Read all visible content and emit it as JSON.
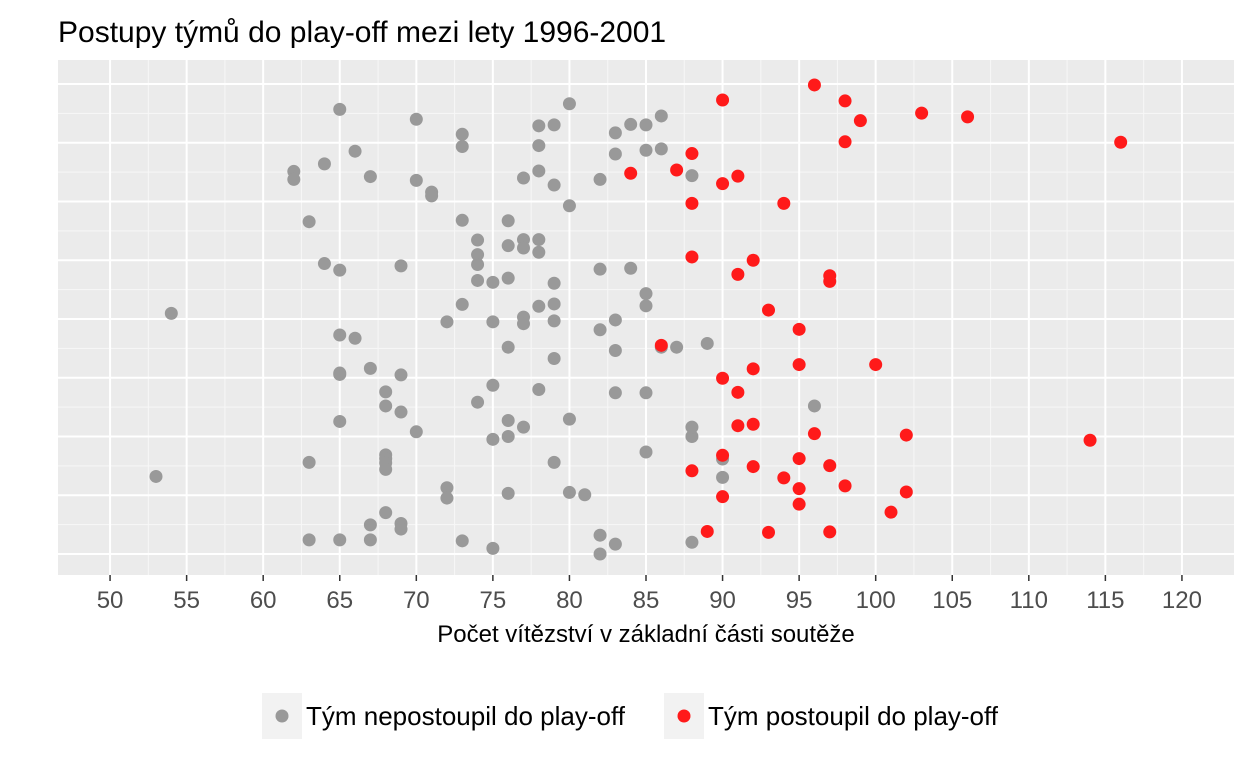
{
  "chart_data": {
    "type": "scatter",
    "title": "Postupy týmů do play-off mezi lety 1996-2001",
    "xlabel": "Počet vítězství v základní části soutěže",
    "ylabel": "",
    "xlim": [
      46.6,
      123.4
    ],
    "ylim": [
      0,
      1
    ],
    "x_ticks": [
      50,
      55,
      60,
      65,
      70,
      75,
      80,
      85,
      90,
      95,
      100,
      105,
      110,
      115,
      120
    ],
    "y_axis_labels_shown": false,
    "grid": true,
    "legend_position": "bottom",
    "series": [
      {
        "name": "Tým nepostoupil do play-off",
        "color": "#999999",
        "x": [
          65,
          70,
          80,
          73,
          73,
          78,
          79,
          78,
          83,
          83,
          84,
          85,
          85,
          86,
          86,
          66,
          64,
          62,
          62,
          67,
          70,
          71,
          71,
          77,
          78,
          79,
          82,
          88,
          80,
          63,
          73,
          76,
          74,
          77,
          78,
          74,
          76,
          77,
          78,
          64,
          65,
          69,
          74,
          75,
          74,
          76,
          79,
          82,
          84,
          73,
          78,
          79,
          85,
          85,
          54,
          72,
          75,
          77,
          77,
          79,
          82,
          83,
          65,
          66,
          76,
          79,
          83,
          86,
          87,
          89,
          67,
          69,
          75,
          78,
          83,
          85,
          65,
          65,
          69,
          68,
          68,
          74,
          76,
          80,
          96,
          65,
          70,
          75,
          76,
          77,
          68,
          68,
          68,
          68,
          79,
          63,
          85,
          88,
          88,
          90,
          53,
          72,
          72,
          76,
          80,
          81,
          90,
          67,
          69,
          69,
          68,
          63,
          65,
          67,
          73,
          75,
          82,
          82,
          83,
          88
        ],
        "y": [
          0.946,
          0.925,
          0.958,
          0.893,
          0.867,
          0.911,
          0.913,
          0.869,
          0.896,
          0.851,
          0.914,
          0.913,
          0.859,
          0.932,
          0.862,
          0.857,
          0.83,
          0.814,
          0.797,
          0.803,
          0.795,
          0.77,
          0.762,
          0.8,
          0.815,
          0.785,
          0.797,
          0.805,
          0.741,
          0.707,
          0.71,
          0.709,
          0.668,
          0.669,
          0.669,
          0.637,
          0.656,
          0.651,
          0.642,
          0.618,
          0.604,
          0.613,
          0.616,
          0.578,
          0.582,
          0.587,
          0.576,
          0.606,
          0.608,
          0.531,
          0.527,
          0.532,
          0.554,
          0.528,
          0.512,
          0.494,
          0.494,
          0.504,
          0.49,
          0.496,
          0.477,
          0.498,
          0.466,
          0.459,
          0.44,
          0.416,
          0.433,
          0.44,
          0.44,
          0.448,
          0.395,
          0.381,
          0.359,
          0.35,
          0.343,
          0.343,
          0.382,
          0.385,
          0.302,
          0.345,
          0.315,
          0.323,
          0.284,
          0.287,
          0.315,
          0.282,
          0.26,
          0.244,
          0.25,
          0.27,
          0.211,
          0.203,
          0.194,
          0.18,
          0.195,
          0.195,
          0.217,
          0.25,
          0.27,
          0.202,
          0.165,
          0.141,
          0.119,
          0.129,
          0.131,
          0.126,
          0.163,
          0.062,
          0.065,
          0.053,
          0.088,
          0.03,
          0.03,
          0.03,
          0.028,
          0.012,
          0.04,
          0.0,
          0.021,
          0.025
        ]
      },
      {
        "name": "Tým postoupil do play-off",
        "color": "#ff1a1a",
        "x": [
          96,
          90,
          98,
          103,
          106,
          99,
          98,
          116,
          88,
          84,
          87,
          91,
          90,
          88,
          94,
          88,
          92,
          97,
          91,
          97,
          93,
          95,
          86,
          100,
          95,
          92,
          90,
          91,
          92,
          91,
          96,
          102,
          114,
          90,
          88,
          95,
          97,
          92,
          94,
          95,
          98,
          90,
          102,
          95,
          101,
          89,
          93,
          97
        ],
        "y": [
          0.998,
          0.966,
          0.964,
          0.938,
          0.93,
          0.922,
          0.877,
          0.876,
          0.852,
          0.81,
          0.817,
          0.804,
          0.788,
          0.746,
          0.746,
          0.632,
          0.625,
          0.592,
          0.595,
          0.58,
          0.519,
          0.478,
          0.444,
          0.403,
          0.403,
          0.394,
          0.374,
          0.344,
          0.276,
          0.273,
          0.256,
          0.253,
          0.242,
          0.21,
          0.177,
          0.203,
          0.188,
          0.186,
          0.162,
          0.139,
          0.145,
          0.122,
          0.132,
          0.106,
          0.089,
          0.048,
          0.046,
          0.047
        ]
      }
    ]
  }
}
